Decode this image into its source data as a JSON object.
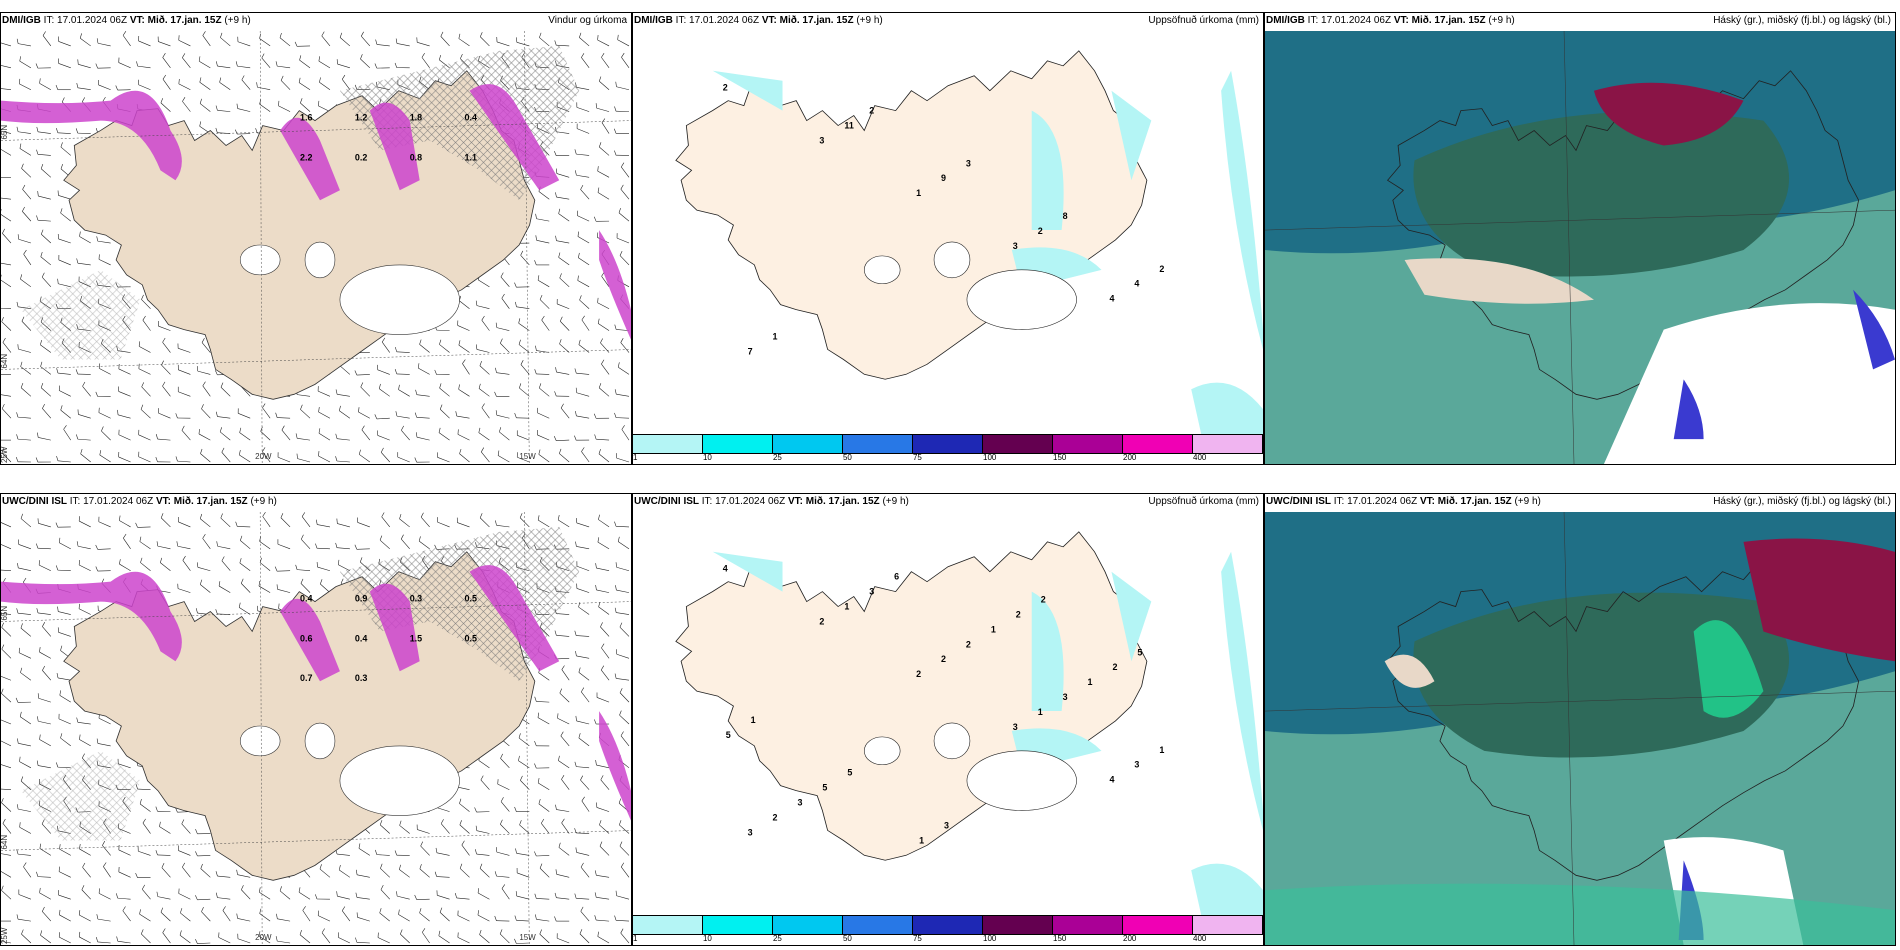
{
  "panels": [
    {
      "model": "DMI/IGB",
      "it_label": "IT:",
      "it": "17.01.2024 06Z",
      "vt_label": "VT:",
      "vt": "Mið. 17.jan. 15Z",
      "lead": "(+9 h)",
      "title": "Vindur og úrkoma",
      "type": "wind",
      "lat_labels": [
        "65N",
        "64N"
      ],
      "lon_labels": [
        "25W",
        "20W",
        "15W"
      ]
    },
    {
      "model": "DMI/IGB",
      "it_label": "IT:",
      "it": "17.01.2024 06Z",
      "vt_label": "VT:",
      "vt": "Mið. 17.jan. 15Z",
      "lead": "(+9 h)",
      "title": "Uppsöfnuð úrkoma (mm)",
      "type": "accum",
      "labels": [
        "2",
        "3",
        "1",
        "3",
        "4",
        "7",
        "11",
        "9",
        "2",
        "4",
        "1",
        "2",
        "3",
        "8",
        "2"
      ]
    },
    {
      "model": "DMI/IGB",
      "it_label": "IT:",
      "it": "17.01.2024 06Z",
      "vt_label": "VT:",
      "vt": "Mið. 17.jan. 15Z",
      "lead": "(+9 h)",
      "title": "Háský (gr.), miðský (fj.bl.) og lágský (bl.)",
      "type": "cloud"
    },
    {
      "model": "UWC/DINI ISL",
      "it_label": "IT:",
      "it": "17.01.2024 06Z",
      "vt_label": "VT:",
      "vt": "Mið. 17.jan. 15Z",
      "lead": "(+9 h)",
      "title": "",
      "type": "wind",
      "lat_labels": [
        "65N",
        "64N"
      ],
      "lon_labels": [
        "25W",
        "20W",
        "15W"
      ]
    },
    {
      "model": "UWC/DINI ISL",
      "it_label": "IT:",
      "it": "17.01.2024 06Z",
      "vt_label": "VT:",
      "vt": "Mið. 17.jan. 15Z",
      "lead": "(+9 h)",
      "title": "Uppsöfnuð úrkoma (mm)",
      "type": "accum",
      "labels": [
        "4",
        "2",
        "2",
        "3",
        "4",
        "3",
        "1",
        "2",
        "1",
        "3",
        "2",
        "3",
        "2",
        "3",
        "1",
        "3",
        "6",
        "1",
        "1",
        "5",
        "5",
        "1",
        "2",
        "2",
        "1",
        "5",
        "3",
        "2",
        "5"
      ]
    },
    {
      "model": "UWC/DINI ISL",
      "it_label": "IT:",
      "it": "17.01.2024 06Z",
      "vt_label": "VT:",
      "vt": "Mið. 17.jan. 15Z",
      "lead": "(+9 h)",
      "title": "Háský (gr.), miðský (fj.bl.) og lágský (bl.)",
      "type": "cloud"
    }
  ],
  "legend": {
    "colors": [
      "#b4f5f5",
      "#00f0f0",
      "#00c8f0",
      "#2878e6",
      "#1e28b4",
      "#640050",
      "#aa0096",
      "#f000b4",
      "#f0b4f0"
    ],
    "ticks": [
      "1",
      "10",
      "25",
      "50",
      "75",
      "100",
      "150",
      "200",
      "400"
    ]
  },
  "precip_labels_wind_top": [
    "1.6",
    "1.2",
    "1.8",
    "0.4",
    "2.2",
    "0.2",
    "0.8",
    "1.1"
  ],
  "precip_labels_wind_bottom": [
    "0.4",
    "0.9",
    "0.3",
    "0.5",
    "0.6",
    "0.4",
    "1.5",
    "0.5",
    "0.7",
    "0.3"
  ]
}
